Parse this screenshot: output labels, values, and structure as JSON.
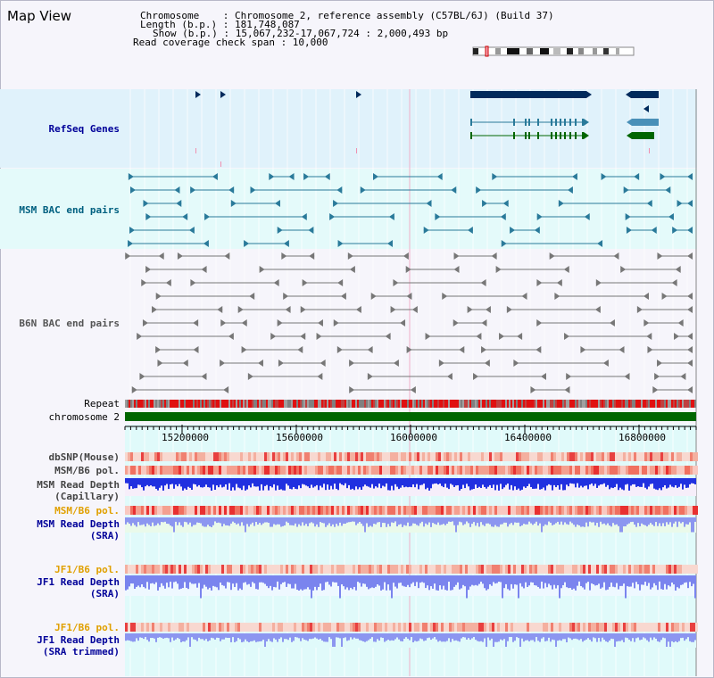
{
  "view_title": "Map View",
  "info": {
    "chromosome": "Chromosome    : Chromosome 2, reference assembly (C57BL/6J) (Build 37)",
    "length": "Length (b.p.) : 181,748,087",
    "show": "Show (b.p.) : 15,067,232-17,067,724 : 2,000,493 bp",
    "coverage": "Read coverage check span : 10,000"
  },
  "tracks": {
    "refseq": "RefSeq Genes",
    "msm_bac": "MSM BAC end pairs",
    "b6n_bac": "B6N BAC end pairs",
    "repeat": "Repeat",
    "chromosome": "chromosome 2",
    "dbsnp": "dbSNP(Mouse)",
    "msm_b6_pol_1": "MSM/B6 pol.",
    "msm_depth_cap_1": "MSM Read Depth",
    "msm_depth_cap_2": "(Capillary)",
    "msm_b6_pol_2": "MSM/B6 pol.",
    "msm_depth_sra_1": "MSM Read Depth",
    "msm_depth_sra_2": "(SRA)",
    "jf1_pol_1": "JF1/B6 pol.",
    "jf1_depth_sra_1": "JF1 Read Depth",
    "jf1_depth_sra_2": "(SRA)",
    "jf1_pol_2": "JF1/B6 pol.",
    "jf1_depth_trim_1": "JF1 Read Depth",
    "jf1_depth_trim_2": "(SRA trimmed)"
  },
  "axis_ticks": [
    "15200000",
    "15600000",
    "16000000",
    "16400000",
    "16800000"
  ],
  "colors": {
    "refseq_bg": "#e0f2fb",
    "msm_bg": "#e4fafa",
    "refseq_label": "#000099",
    "msm_label": "#006080",
    "orange_label": "#e0a000",
    "blue_label": "#000099",
    "gene_dark": "#002a5c",
    "gene_blue": "#4a90b8",
    "gene_green": "#006600",
    "bac_msm": "#2a7a9a",
    "bac_b6n": "#777777",
    "chrom_green": "#006600"
  }
}
